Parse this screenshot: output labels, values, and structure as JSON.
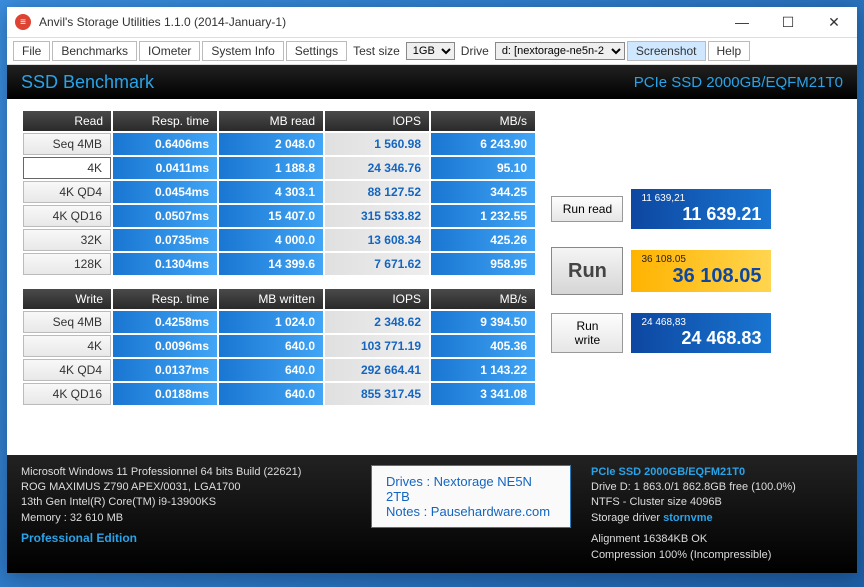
{
  "window": {
    "title": "Anvil's Storage Utilities 1.1.0 (2014-January-1)"
  },
  "toolbar": {
    "file": "File",
    "benchmarks": "Benchmarks",
    "iometer": "IOmeter",
    "system_info": "System Info",
    "settings": "Settings",
    "test_size_label": "Test size",
    "test_size_value": "1GB",
    "drive_label": "Drive",
    "drive_value": "d: [nextorage-ne5n-2",
    "screenshot": "Screenshot",
    "help": "Help"
  },
  "header": {
    "title": "SSD Benchmark",
    "right": "PCIe SSD 2000GB/EQFM21T0"
  },
  "read_table": {
    "headers": [
      "Read",
      "Resp. time",
      "MB read",
      "IOPS",
      "MB/s"
    ],
    "rows": [
      {
        "label": "Seq 4MB",
        "resp": "0.6406ms",
        "mb": "2 048.0",
        "iops": "1 560.98",
        "mbs": "6 243.90"
      },
      {
        "label": "4K",
        "resp": "0.0411ms",
        "mb": "1 188.8",
        "iops": "24 346.76",
        "mbs": "95.10",
        "selected": true
      },
      {
        "label": "4K QD4",
        "resp": "0.0454ms",
        "mb": "4 303.1",
        "iops": "88 127.52",
        "mbs": "344.25"
      },
      {
        "label": "4K QD16",
        "resp": "0.0507ms",
        "mb": "15 407.0",
        "iops": "315 533.82",
        "mbs": "1 232.55"
      },
      {
        "label": "32K",
        "resp": "0.0735ms",
        "mb": "4 000.0",
        "iops": "13 608.34",
        "mbs": "425.26"
      },
      {
        "label": "128K",
        "resp": "0.1304ms",
        "mb": "14 399.6",
        "iops": "7 671.62",
        "mbs": "958.95"
      }
    ]
  },
  "write_table": {
    "headers": [
      "Write",
      "Resp. time",
      "MB written",
      "IOPS",
      "MB/s"
    ],
    "rows": [
      {
        "label": "Seq 4MB",
        "resp": "0.4258ms",
        "mb": "1 024.0",
        "iops": "2 348.62",
        "mbs": "9 394.50"
      },
      {
        "label": "4K",
        "resp": "0.0096ms",
        "mb": "640.0",
        "iops": "103 771.19",
        "mbs": "405.36"
      },
      {
        "label": "4K QD4",
        "resp": "0.0137ms",
        "mb": "640.0",
        "iops": "292 664.41",
        "mbs": "1 143.22"
      },
      {
        "label": "4K QD16",
        "resp": "0.0188ms",
        "mb": "640.0",
        "iops": "855 317.45",
        "mbs": "3 341.08"
      }
    ]
  },
  "scores": {
    "run_read": "Run read",
    "read_small": "11 639,21",
    "read_big": "11 639.21",
    "run": "Run",
    "total_small": "36 108.05",
    "total_big": "36 108.05",
    "run_write": "Run write",
    "write_small": "24 468,83",
    "write_big": "24 468.83"
  },
  "footer": {
    "os": "Microsoft Windows 11 Professionnel 64 bits Build (22621)",
    "mb": "ROG MAXIMUS Z790 APEX/0031, LGA1700",
    "cpu": "13th Gen Intel(R) Core(TM) i9-13900KS",
    "mem": "Memory : 32 610 MB",
    "edition": "Professional Edition",
    "drives_label": "Drives : ",
    "drives_val": "Nextorage NE5N 2TB",
    "notes_label": "Notes : ",
    "notes_val": "Pausehardware.com",
    "r_title": "PCIe SSD 2000GB/EQFM21T0",
    "r_drive": "Drive D: 1 863.0/1 862.8GB free (100.0%)",
    "r_ntfs": "NTFS - Cluster size 4096B",
    "r_driver_label": "Storage driver ",
    "r_driver_val": "stornvme",
    "r_align": "Alignment 16384KB OK",
    "r_comp": "Compression 100% (Incompressible)"
  }
}
